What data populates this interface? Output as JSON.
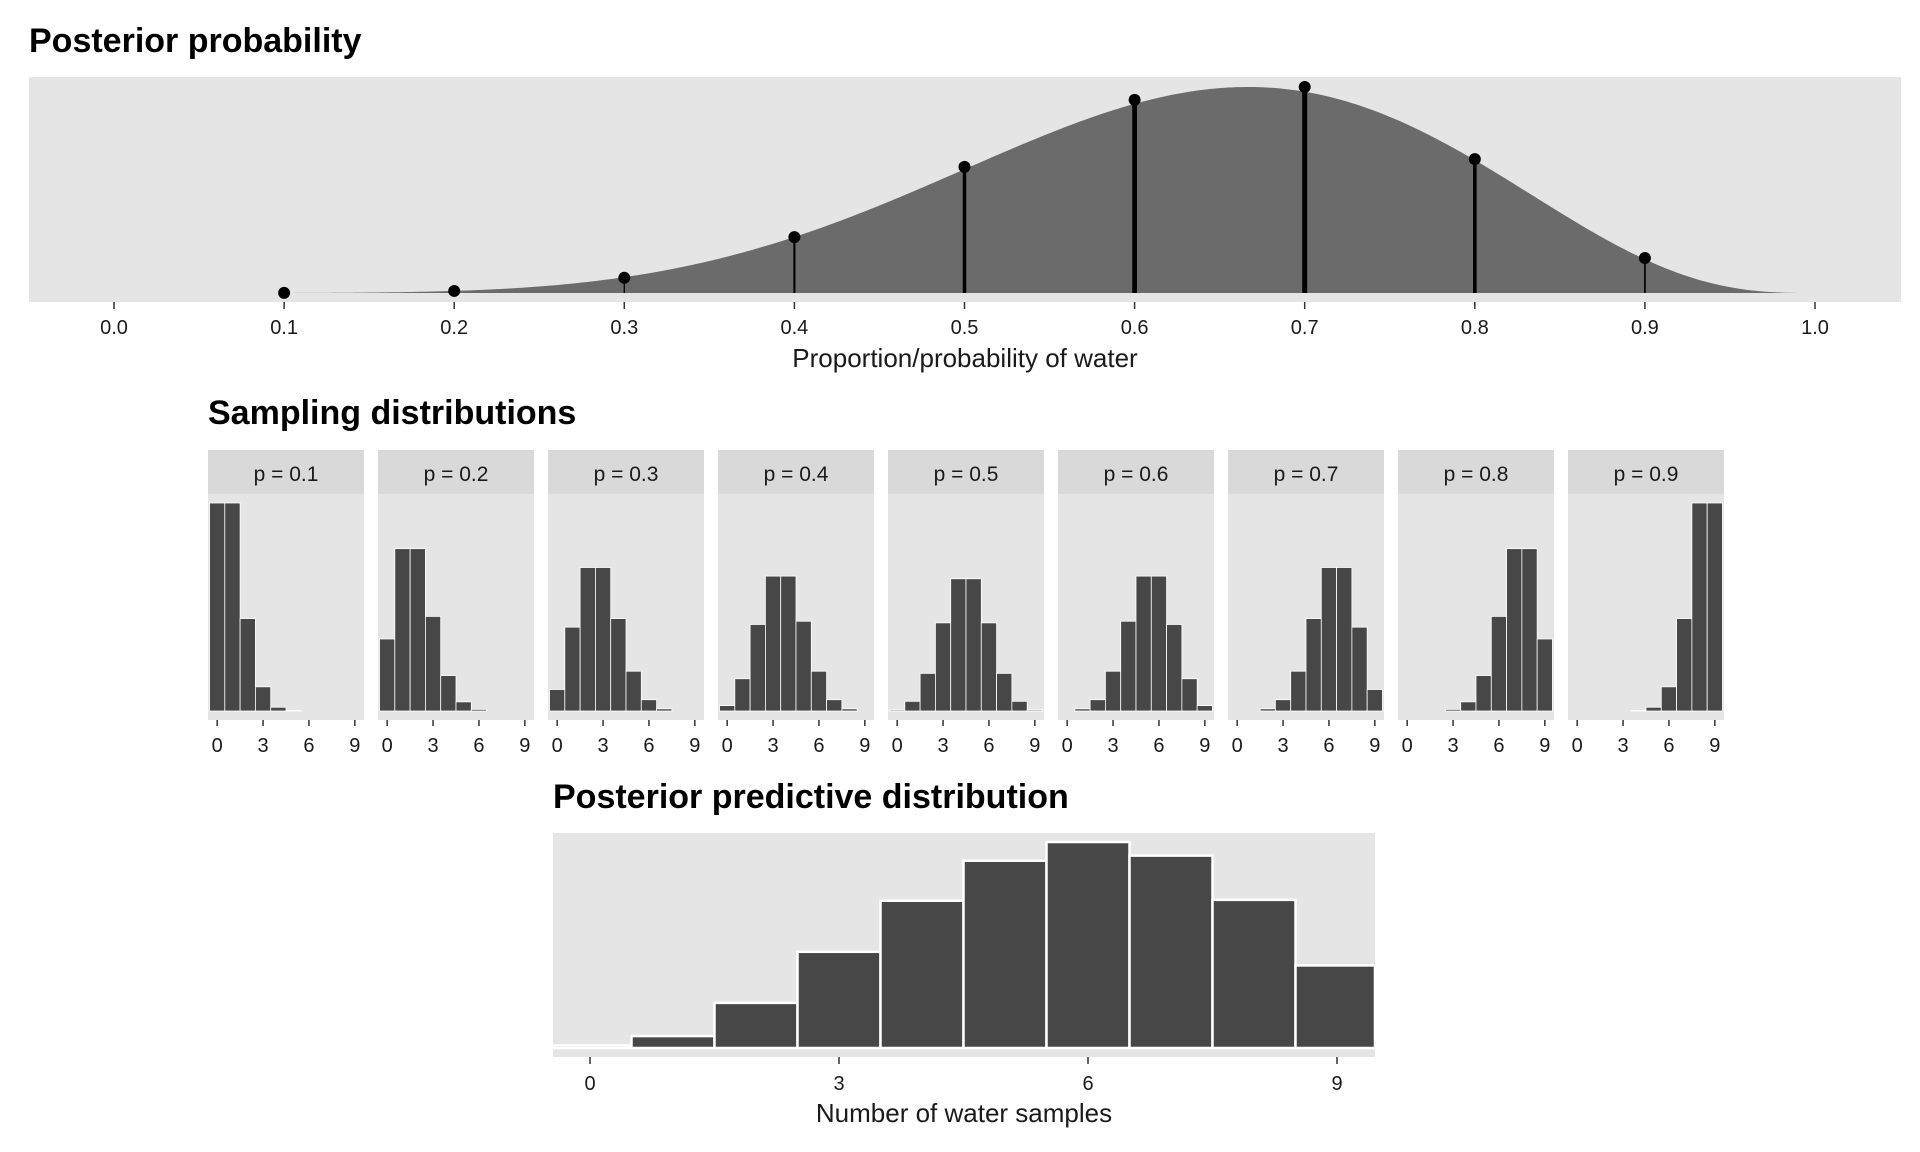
{
  "chart_data": [
    {
      "type": "area",
      "title": "Posterior probability",
      "xlabel": "Proportion/probability of water",
      "ylabel": "",
      "xlim": [
        0,
        1
      ],
      "xticks": [
        "0.0",
        "0.1",
        "0.2",
        "0.3",
        "0.4",
        "0.5",
        "0.6",
        "0.7",
        "0.8",
        "0.9",
        "1.0"
      ],
      "grid": false,
      "curve": "beta(7, 4) density",
      "fill_color": "#6b6b6b",
      "points": {
        "x": [
          0.1,
          0.2,
          0.3,
          0.4,
          0.5,
          0.6,
          0.7,
          0.8,
          0.9
        ],
        "y": [
          0.0003,
          0.008,
          0.059,
          0.217,
          0.49,
          0.75,
          0.8,
          0.52,
          0.136
        ]
      }
    },
    {
      "type": "bar",
      "title": "Sampling distributions",
      "xticks": [
        "0",
        "3",
        "6",
        "9"
      ],
      "x": [
        0,
        1,
        2,
        3,
        4,
        5,
        6,
        7,
        8,
        9
      ],
      "bar_color": "#474747",
      "panels": [
        {
          "label": "p = 0.1",
          "values": [
            0.387,
            0.387,
            0.172,
            0.045,
            0.007,
            0.001,
            0,
            0,
            0,
            0
          ]
        },
        {
          "label": "p = 0.2",
          "values": [
            0.134,
            0.302,
            0.302,
            0.176,
            0.066,
            0.017,
            0.003,
            0,
            0,
            0
          ]
        },
        {
          "label": "p = 0.3",
          "values": [
            0.04,
            0.156,
            0.267,
            0.267,
            0.172,
            0.074,
            0.021,
            0.004,
            0,
            0
          ]
        },
        {
          "label": "p = 0.4",
          "values": [
            0.01,
            0.06,
            0.161,
            0.251,
            0.251,
            0.167,
            0.074,
            0.021,
            0.004,
            0
          ]
        },
        {
          "label": "p = 0.5",
          "values": [
            0.002,
            0.018,
            0.07,
            0.164,
            0.246,
            0.246,
            0.164,
            0.07,
            0.018,
            0.002
          ]
        },
        {
          "label": "p = 0.6",
          "values": [
            0,
            0.004,
            0.021,
            0.074,
            0.167,
            0.251,
            0.251,
            0.161,
            0.06,
            0.01
          ]
        },
        {
          "label": "p = 0.7",
          "values": [
            0,
            0,
            0.004,
            0.021,
            0.074,
            0.172,
            0.267,
            0.267,
            0.156,
            0.04
          ]
        },
        {
          "label": "p = 0.8",
          "values": [
            0,
            0,
            0,
            0.003,
            0.017,
            0.066,
            0.176,
            0.302,
            0.302,
            0.134
          ]
        },
        {
          "label": "p = 0.9",
          "values": [
            0,
            0,
            0,
            0,
            0.001,
            0.007,
            0.045,
            0.172,
            0.387,
            0.387
          ]
        }
      ]
    },
    {
      "type": "bar",
      "title": "Posterior predictive distribution",
      "xlabel": "Number of water samples",
      "ylabel": "",
      "x": [
        0,
        1,
        2,
        3,
        4,
        5,
        6,
        7,
        8,
        9
      ],
      "xticks": [
        "0",
        "3",
        "6",
        "9"
      ],
      "values": [
        0.003,
        0.014,
        0.053,
        0.113,
        0.173,
        0.22,
        0.242,
        0.226,
        0.174,
        0.097
      ],
      "bar_color": "#474747"
    }
  ]
}
